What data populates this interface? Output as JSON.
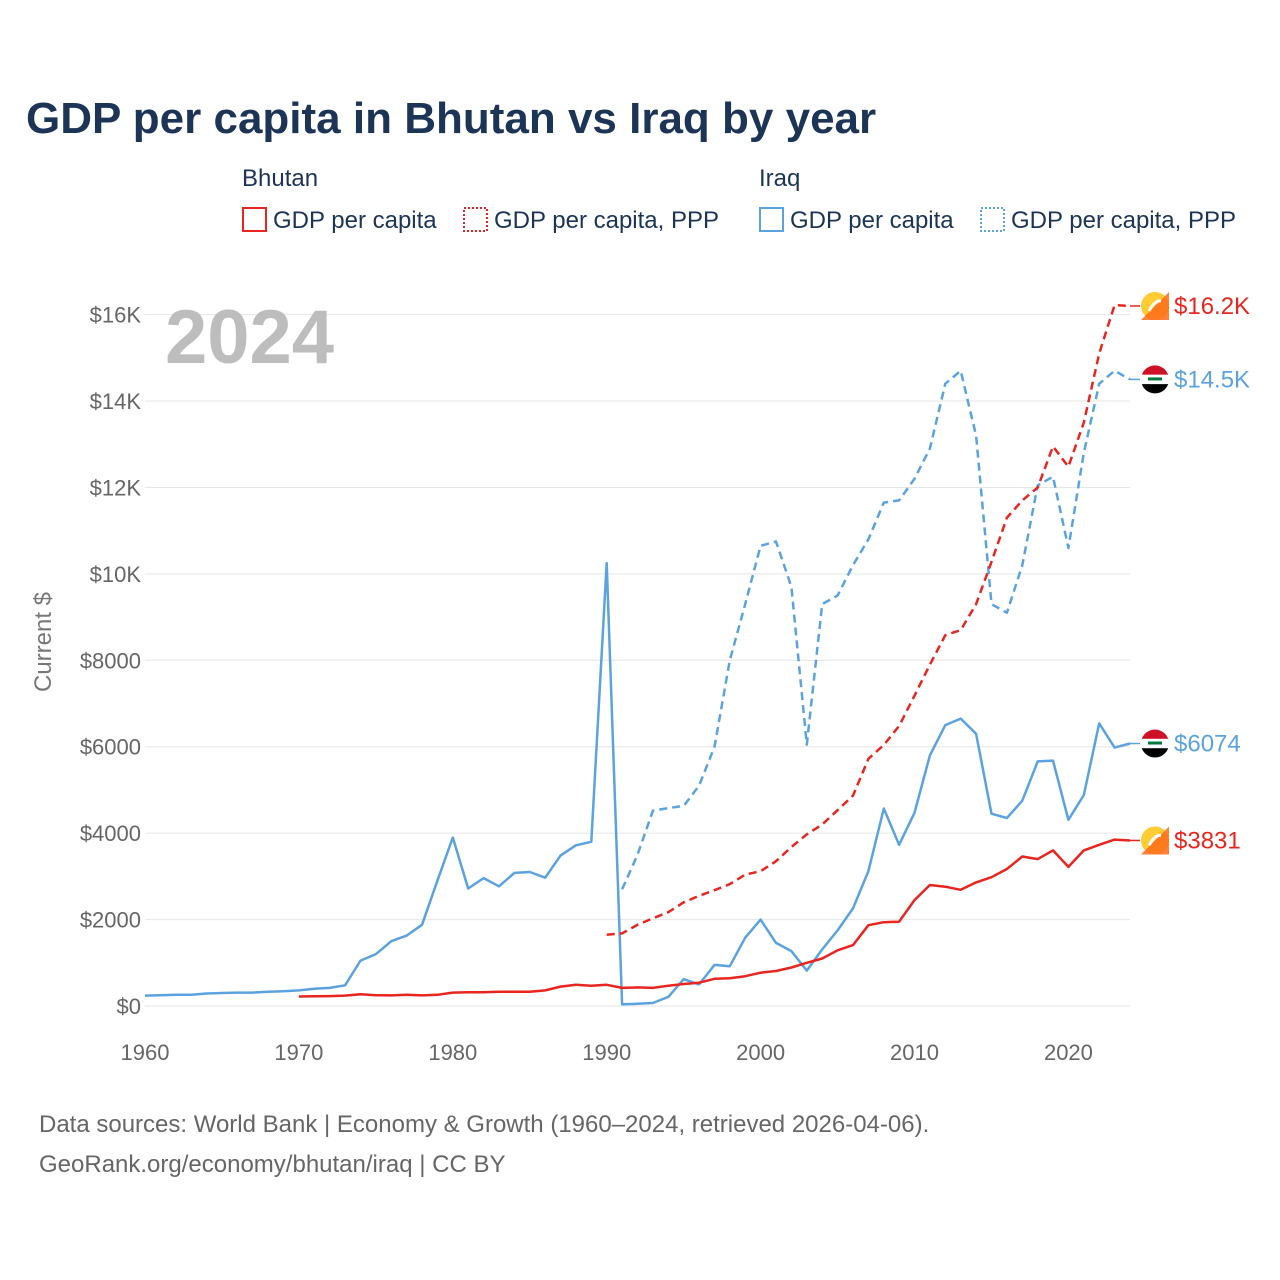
{
  "title": "GDP per capita in Bhutan vs Iraq by year",
  "legend": {
    "bhutan": {
      "group": "Bhutan",
      "solid_label": "GDP per capita",
      "dashed_label": "GDP per capita, PPP",
      "color": "#e8251f"
    },
    "iraq": {
      "group": "Iraq",
      "solid_label": "GDP per capita",
      "dashed_label": "GDP per capita, PPP",
      "color": "#5ba3e0"
    }
  },
  "year_label": "2024",
  "sources": {
    "line1": "Data sources: World Bank | Economy & Growth (1960–2024, retrieved 2026-04-06).",
    "line2": "GeoRank.org/economy/bhutan/iraq | CC BY"
  },
  "chart_data": {
    "type": "line",
    "title": "GDP per capita in Bhutan vs Iraq by year",
    "xlabel": "",
    "ylabel": "Current $",
    "xlim": [
      1960,
      2024
    ],
    "ylim": [
      0,
      16500
    ],
    "x_ticks": [
      {
        "value": 1960,
        "label": "1960"
      },
      {
        "value": 1970,
        "label": "1970"
      },
      {
        "value": 1980,
        "label": "1980"
      },
      {
        "value": 1990,
        "label": "1990"
      },
      {
        "value": 2000,
        "label": "2000"
      },
      {
        "value": 2010,
        "label": "2010"
      },
      {
        "value": 2020,
        "label": "2020"
      }
    ],
    "y_ticks": [
      {
        "value": 0,
        "label": "$0"
      },
      {
        "value": 2000,
        "label": "$2000"
      },
      {
        "value": 4000,
        "label": "$4000"
      },
      {
        "value": 6000,
        "label": "$6000"
      },
      {
        "value": 8000,
        "label": "$8000"
      },
      {
        "value": 10000,
        "label": "$10K"
      },
      {
        "value": 12000,
        "label": "$12K"
      },
      {
        "value": 14000,
        "label": "$14K"
      },
      {
        "value": 16000,
        "label": "$16K"
      }
    ],
    "grid": true,
    "legend_position": "top",
    "series": [
      {
        "name": "Iraq GDP per capita",
        "country": "iraq",
        "dashed": false,
        "color": "#5ba3e0",
        "end_label": "$6074",
        "x": [
          1960,
          1961,
          1962,
          1963,
          1964,
          1965,
          1966,
          1967,
          1968,
          1969,
          1970,
          1971,
          1972,
          1973,
          1974,
          1975,
          1976,
          1977,
          1978,
          1979,
          1980,
          1981,
          1982,
          1983,
          1984,
          1985,
          1986,
          1987,
          1988,
          1989,
          1990,
          1991,
          1992,
          1993,
          1994,
          1995,
          1996,
          1997,
          1998,
          1999,
          2000,
          2001,
          2002,
          2003,
          2004,
          2005,
          2006,
          2007,
          2008,
          2009,
          2010,
          2011,
          2012,
          2013,
          2014,
          2015,
          2016,
          2017,
          2018,
          2019,
          2020,
          2021,
          2022,
          2023,
          2024
        ],
        "y": [
          240,
          250,
          260,
          260,
          290,
          300,
          310,
          310,
          330,
          340,
          360,
          400,
          420,
          480,
          1050,
          1200,
          1500,
          1630,
          1880,
          2900,
          3900,
          2720,
          2960,
          2770,
          3080,
          3100,
          2970,
          3480,
          3720,
          3800,
          10250,
          40,
          50,
          70,
          210,
          620,
          500,
          950,
          920,
          1580,
          2000,
          1460,
          1270,
          820,
          1310,
          1750,
          2260,
          3120,
          4570,
          3730,
          4470,
          5800,
          6500,
          6650,
          6300,
          4450,
          4350,
          4750,
          5660,
          5680,
          4310,
          4880,
          6540,
          5980,
          6074
        ]
      },
      {
        "name": "Iraq GDP per capita, PPP",
        "country": "iraq",
        "dashed": true,
        "color": "#5ba3e0",
        "end_label": "$14.5K",
        "x": [
          1991,
          1992,
          1993,
          1994,
          1995,
          1996,
          1997,
          1998,
          1999,
          2000,
          2001,
          2002,
          2003,
          2004,
          2005,
          2006,
          2007,
          2008,
          2009,
          2010,
          2011,
          2012,
          2013,
          2014,
          2015,
          2016,
          2017,
          2018,
          2019,
          2020,
          2021,
          2022,
          2023,
          2024
        ],
        "y": [
          2700,
          3500,
          4520,
          4580,
          4630,
          5100,
          6000,
          8000,
          9300,
          10650,
          10750,
          9700,
          6050,
          9300,
          9500,
          10200,
          10800,
          11650,
          11700,
          12200,
          12900,
          14400,
          14700,
          13200,
          9300,
          9100,
          10200,
          12050,
          12250,
          10600,
          12800,
          14400,
          14700,
          14500
        ]
      },
      {
        "name": "Bhutan GDP per capita",
        "country": "bhutan",
        "dashed": false,
        "color": "#e8251f",
        "end_label": "$3831",
        "x": [
          1970,
          1971,
          1972,
          1973,
          1974,
          1975,
          1976,
          1977,
          1978,
          1979,
          1980,
          1981,
          1982,
          1983,
          1984,
          1985,
          1986,
          1987,
          1988,
          1989,
          1990,
          1991,
          1992,
          1993,
          1994,
          1995,
          1996,
          1997,
          1998,
          1999,
          2000,
          2001,
          2002,
          2003,
          2004,
          2005,
          2006,
          2007,
          2008,
          2009,
          2010,
          2011,
          2012,
          2013,
          2014,
          2015,
          2016,
          2017,
          2018,
          2019,
          2020,
          2021,
          2022,
          2023,
          2024
        ],
        "y": [
          220,
          225,
          230,
          240,
          270,
          250,
          245,
          260,
          245,
          260,
          310,
          320,
          320,
          330,
          330,
          330,
          360,
          450,
          490,
          470,
          490,
          420,
          430,
          420,
          470,
          510,
          540,
          630,
          640,
          690,
          770,
          810,
          890,
          1000,
          1100,
          1290,
          1410,
          1870,
          1940,
          1950,
          2450,
          2800,
          2760,
          2690,
          2860,
          2980,
          3170,
          3460,
          3400,
          3600,
          3220,
          3600,
          3730,
          3850,
          3831
        ]
      },
      {
        "name": "Bhutan GDP per capita, PPP",
        "country": "bhutan",
        "dashed": true,
        "color": "#e8251f",
        "end_label": "$16.2K",
        "x": [
          1990,
          1991,
          1992,
          1993,
          1994,
          1995,
          1996,
          1997,
          1998,
          1999,
          2000,
          2001,
          2002,
          2003,
          2004,
          2005,
          2006,
          2007,
          2008,
          2009,
          2010,
          2011,
          2012,
          2013,
          2014,
          2015,
          2016,
          2017,
          2018,
          2019,
          2020,
          2021,
          2022,
          2023,
          2024
        ],
        "y": [
          1650,
          1680,
          1880,
          2030,
          2170,
          2400,
          2550,
          2680,
          2820,
          3040,
          3120,
          3350,
          3680,
          3970,
          4200,
          4530,
          4870,
          5720,
          6040,
          6480,
          7180,
          7900,
          8580,
          8700,
          9300,
          10280,
          11300,
          11700,
          12000,
          12950,
          12480,
          13500,
          15100,
          16220,
          16200
        ]
      }
    ]
  }
}
